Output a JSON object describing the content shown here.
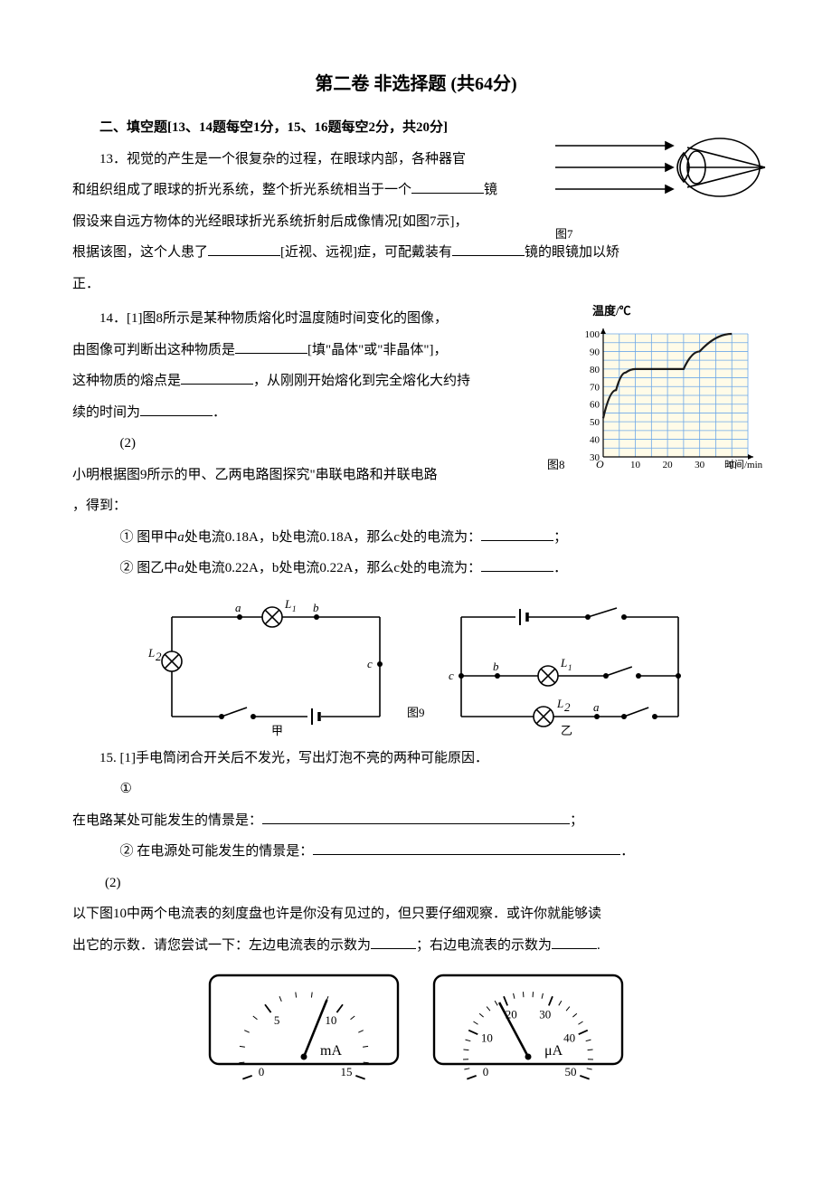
{
  "page": {
    "title": "第二卷 非选择题 (共64分)",
    "section_header": "二、填空题[13、14题每空1分，15、16题每空2分，共20分]"
  },
  "q13": {
    "line1_a": "13．视觉的产生是一个很复杂的过程，在眼球内部，各种器官",
    "line2_a": "和组织组成了眼球的折光系统，整个折光系统相当于一个",
    "line2_b": "镜",
    "line3": "假设来自远方物体的光经眼球折光系统折射后成像情况[如图7示]，",
    "line4_a": "根据该图，这个人患了",
    "line4_b": "[近视、远视]症，可配戴装有",
    "line4_c": "镜的眼镜加以矫",
    "line5": "正．"
  },
  "fig7": {
    "caption": "图7"
  },
  "q14": {
    "line1_a": "14．[1]图8所示是某种物质熔化时温度随时间变化的图像，",
    "line2_a": "由图像可判断出这种物质是",
    "line2_b": "[填\"晶体\"或\"非晶体\"]，",
    "line3_a": "这种物质的熔点是",
    "line3_b": "，从刚刚开始熔化到完全熔化大约持",
    "line4_a": "续的时间为",
    "line4_b": "．",
    "sub2": "(2)",
    "line5": "小明根据图9所示的甲、乙两电路图探究\"串联电路和并联电路",
    "line6": "，得到：",
    "item1_a": "① 图甲中",
    "item1_b": "处电流0.18A，b处电流0.18A，那么c处的电流为：",
    "item1_c": "；",
    "item2_a": "② 图乙中",
    "item2_b": "处电流0.22A，b处电流0.22A，那么c处的电流为：",
    "item2_c": "．",
    "a_label": "a"
  },
  "fig8": {
    "ylabel": "温度/℃",
    "xlabel": "时间/min",
    "caption": "图8",
    "yticks": [
      "30",
      "40",
      "50",
      "60",
      "70",
      "80",
      "90",
      "100"
    ],
    "xticks": [
      "10",
      "20",
      "30",
      "40"
    ],
    "origin": "O",
    "curve_points": [
      [
        0,
        52
      ],
      [
        4,
        68
      ],
      [
        7,
        78
      ],
      [
        10,
        80
      ],
      [
        25,
        80
      ],
      [
        30,
        90
      ],
      [
        40,
        100
      ]
    ],
    "grid_color": "#6da8e8",
    "line_color": "#1a1a1a",
    "bg_tint": "#fffbe8"
  },
  "fig9": {
    "caption": "图9",
    "cap_left": "甲",
    "cap_right": "乙",
    "L1": "L",
    "L1sub": "1",
    "L2": "L",
    "L2sub": "2",
    "a": "a",
    "b": "b",
    "c": "c"
  },
  "q15": {
    "line1": "15. [1]手电筒闭合开关后不发光，写出灯泡不亮的两种可能原因．",
    "item1": "①",
    "item1_body_a": "在电路某处可能发生的情景是：",
    "item1_body_b": "；",
    "item2_a": "② 在电源处可能发生的情景是：",
    "item2_b": "．",
    "sub2": "(2)",
    "line3": "以下图10中两个电流表的刻度盘也许是你没有见过的，但只要仔细观察．或许你就能够读",
    "line4_a": "出它的示数．请您尝试一下：左边电流表的示数为",
    "line4_b": "；右边电流表的示数为",
    "line4_c": "."
  },
  "meter_left": {
    "unit": "mA",
    "ticks": [
      "0",
      "5",
      "10",
      "15"
    ],
    "needle_angle_deg": -22
  },
  "meter_right": {
    "unit": "μA",
    "ticks": [
      "0",
      "10",
      "20",
      "30",
      "40",
      "50"
    ],
    "needle_angle_deg": 28
  },
  "colors": {
    "text": "#000000",
    "stroke": "#000000"
  }
}
